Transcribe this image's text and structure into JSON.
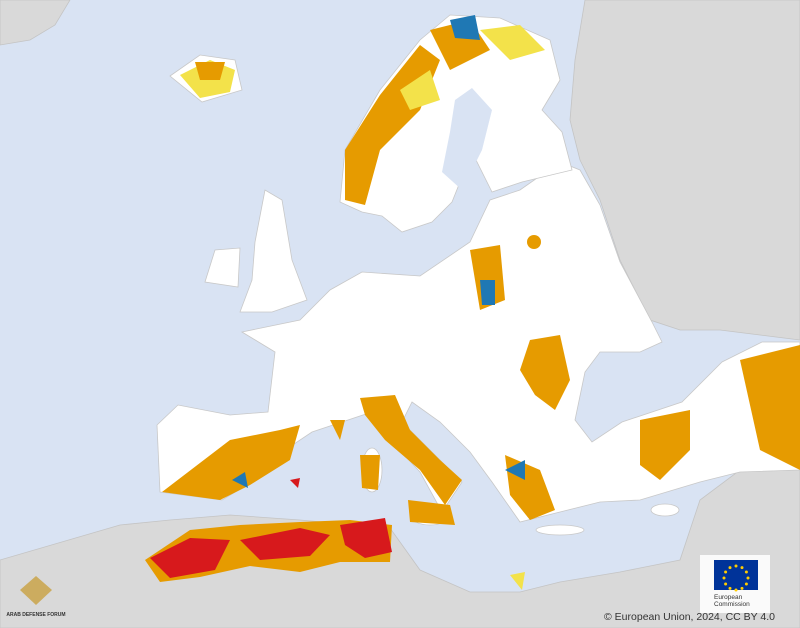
{
  "attribution": "© European Union, 2024, CC BY 4.0",
  "logo": {
    "line1": "European",
    "line2": "Commission"
  },
  "watermark": {
    "title": "ARAB DEFENSE FORUM"
  }
}
